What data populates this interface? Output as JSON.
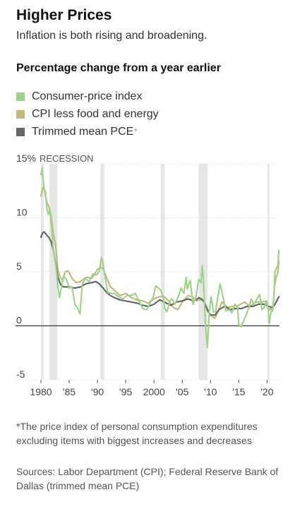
{
  "header": {
    "title": "Higher Prices",
    "subtitle": "Inflation is both rising and broadening.",
    "section_heading": "Percentage change from a year earlier"
  },
  "legend": [
    {
      "label": "Consumer-price index",
      "color": "#9fd38a",
      "marker": ""
    },
    {
      "label": "CPI less food and energy",
      "color": "#c3b97a",
      "marker": ""
    },
    {
      "label": "Trimmed mean PCE",
      "color": "#666666",
      "marker": "*"
    }
  ],
  "footnote": {
    "marker": "*",
    "text": "The price index of personal consumption expenditures excluding items with biggest increases and decreases"
  },
  "sources": "Sources: Labor Department (CPI); Federal Reserve Bank of Dallas (trimmed mean PCE)",
  "chart_data": {
    "type": "line",
    "title": "Percentage change from a year earlier",
    "xlabel": "",
    "ylabel": "",
    "xlim": [
      1979.5,
      2022.2
    ],
    "ylim": [
      -5,
      15
    ],
    "y_ticks": [
      {
        "value": 15,
        "label": "15%"
      },
      {
        "value": 10,
        "label": "10"
      },
      {
        "value": 5,
        "label": "5"
      },
      {
        "value": 0,
        "label": "0"
      },
      {
        "value": -5,
        "label": "-5"
      }
    ],
    "x_ticks": [
      {
        "value": 1980,
        "label": "1980"
      },
      {
        "value": 1985,
        "label": "'85"
      },
      {
        "value": 1990,
        "label": "'90"
      },
      {
        "value": 1995,
        "label": "'95"
      },
      {
        "value": 2000,
        "label": "2000"
      },
      {
        "value": 2005,
        "label": "'05"
      },
      {
        "value": 2010,
        "label": "'10"
      },
      {
        "value": 2015,
        "label": "'15"
      },
      {
        "value": 2020,
        "label": "'20"
      }
    ],
    "grid": true,
    "recession_label": "RECESSION",
    "recessions": [
      [
        1980.0,
        1980.5
      ],
      [
        1981.5,
        1982.9
      ],
      [
        1990.5,
        1991.2
      ],
      [
        2001.2,
        2001.9
      ],
      [
        2007.9,
        2009.5
      ],
      [
        2020.1,
        2020.4
      ]
    ],
    "series": [
      {
        "name": "Consumer-price index",
        "color": "#9fd38a",
        "x": [
          1980.0,
          1980.2,
          1980.4,
          1980.6,
          1980.8,
          1981.0,
          1981.3,
          1981.6,
          1981.9,
          1982.2,
          1982.5,
          1982.8,
          1983.0,
          1983.3,
          1983.6,
          1984.0,
          1984.5,
          1985.0,
          1985.5,
          1986.0,
          1986.5,
          1986.9,
          1987.3,
          1987.8,
          1988.5,
          1989.2,
          1989.8,
          1990.3,
          1990.7,
          1990.9,
          1991.3,
          1991.8,
          1992.5,
          1993.0,
          1993.7,
          1994.5,
          1995.2,
          1996.0,
          1996.7,
          1997.3,
          1998.0,
          1998.7,
          1999.3,
          1999.9,
          2000.3,
          2000.8,
          2001.2,
          2001.7,
          2001.9,
          2002.3,
          2002.8,
          2003.2,
          2003.7,
          2004.3,
          2004.8,
          2005.3,
          2005.7,
          2005.9,
          2006.4,
          2006.9,
          2007.4,
          2007.9,
          2008.3,
          2008.55,
          2008.8,
          2009.1,
          2009.45,
          2009.8,
          2010.1,
          2010.5,
          2010.9,
          2011.3,
          2011.7,
          2012.2,
          2012.7,
          2013.3,
          2013.8,
          2014.3,
          2014.8,
          2015.0,
          2015.4,
          2015.9,
          2016.3,
          2016.8,
          2017.2,
          2017.7,
          2018.2,
          2018.7,
          2019.1,
          2019.6,
          2019.9,
          2020.2,
          2020.4,
          2020.7,
          2021.0,
          2021.2,
          2021.4,
          2021.7,
          2021.9,
          2022.1
        ],
        "values": [
          14.0,
          14.6,
          13.5,
          12.6,
          12.4,
          11.0,
          10.3,
          10.8,
          9.0,
          7.0,
          6.0,
          4.8,
          3.6,
          2.6,
          3.5,
          4.6,
          4.3,
          3.5,
          3.6,
          2.0,
          1.6,
          1.1,
          3.8,
          4.4,
          4.1,
          4.8,
          4.7,
          5.0,
          6.3,
          6.0,
          4.7,
          3.1,
          3.0,
          3.0,
          2.7,
          2.5,
          2.8,
          2.8,
          3.0,
          2.3,
          1.6,
          1.5,
          2.1,
          2.7,
          3.7,
          3.5,
          3.3,
          2.6,
          1.6,
          1.3,
          2.3,
          2.5,
          2.0,
          2.7,
          3.5,
          3.0,
          4.5,
          3.4,
          4.2,
          2.0,
          2.6,
          4.3,
          4.0,
          5.6,
          3.7,
          0.0,
          -2.0,
          1.4,
          2.7,
          1.3,
          1.3,
          2.7,
          3.9,
          2.7,
          1.4,
          1.5,
          1.2,
          2.0,
          1.7,
          0.1,
          -0.1,
          0.5,
          1.0,
          1.7,
          2.5,
          2.0,
          2.5,
          2.9,
          1.5,
          1.8,
          2.3,
          1.5,
          0.2,
          1.3,
          1.4,
          2.6,
          5.0,
          5.4,
          5.5,
          7.0
        ]
      },
      {
        "name": "CPI less food and energy",
        "color": "#c3b97a",
        "x": [
          1980.0,
          1980.3,
          1980.6,
          1981.0,
          1981.4,
          1981.8,
          1982.2,
          1982.6,
          1983.0,
          1983.4,
          1983.8,
          1984.3,
          1984.8,
          1985.5,
          1986.2,
          1987.0,
          1988.0,
          1989.0,
          1990.0,
          1990.6,
          1991.0,
          1991.6,
          1992.3,
          1993.0,
          1994.0,
          1995.0,
          1996.0,
          1997.0,
          1998.0,
          1999.0,
          2000.0,
          2001.0,
          2001.8,
          2002.6,
          2003.4,
          2004.2,
          2005.0,
          2006.0,
          2006.8,
          2007.6,
          2008.5,
          2009.3,
          2010.0,
          2010.8,
          2011.5,
          2012.0,
          2013.0,
          2014.0,
          2015.0,
          2016.0,
          2017.0,
          2018.0,
          2019.0,
          2019.9,
          2020.3,
          2020.6,
          2021.0,
          2021.3,
          2021.6,
          2021.9,
          2022.1
        ],
        "values": [
          12.0,
          12.8,
          12.6,
          11.5,
          11.0,
          10.2,
          8.5,
          7.5,
          5.2,
          4.5,
          4.2,
          5.0,
          5.1,
          4.4,
          4.0,
          4.1,
          4.5,
          4.4,
          5.2,
          5.4,
          5.3,
          4.5,
          3.6,
          3.3,
          2.8,
          3.0,
          2.6,
          2.4,
          2.3,
          2.1,
          2.5,
          2.7,
          2.7,
          2.3,
          1.7,
          1.5,
          2.2,
          2.8,
          2.7,
          2.3,
          2.5,
          1.7,
          1.0,
          0.7,
          1.5,
          2.2,
          1.7,
          1.8,
          1.9,
          2.2,
          1.8,
          2.2,
          2.2,
          2.3,
          1.4,
          1.6,
          1.4,
          3.5,
          4.5,
          4.9,
          6.0
        ]
      },
      {
        "name": "Trimmed mean PCE",
        "color": "#666666",
        "x": [
          1980.0,
          1980.3,
          1980.6,
          1981.0,
          1981.4,
          1981.8,
          1982.2,
          1982.6,
          1983.0,
          1983.5,
          1984.0,
          1985.0,
          1986.0,
          1987.0,
          1988.0,
          1989.0,
          1989.7,
          1990.3,
          1991.0,
          1991.6,
          1992.3,
          1993.0,
          1994.0,
          1995.0,
          1996.0,
          1997.0,
          1998.0,
          1999.0,
          2000.0,
          2001.0,
          2001.8,
          2003.0,
          2004.0,
          2005.0,
          2006.0,
          2007.0,
          2008.0,
          2008.8,
          2009.5,
          2010.0,
          2010.8,
          2011.5,
          2012.5,
          2013.5,
          2014.5,
          2015.5,
          2016.5,
          2017.5,
          2018.5,
          2019.5,
          2020.3,
          2020.8,
          2021.3,
          2021.7,
          2022.1
        ],
        "values": [
          8.2,
          8.6,
          8.7,
          8.4,
          8.2,
          7.8,
          7.0,
          5.8,
          4.5,
          3.8,
          3.6,
          3.6,
          3.5,
          3.6,
          3.9,
          4.0,
          4.1,
          3.9,
          3.5,
          3.1,
          2.8,
          2.6,
          2.4,
          2.3,
          2.2,
          2.1,
          1.9,
          1.8,
          2.0,
          2.4,
          2.2,
          1.9,
          2.2,
          2.3,
          2.5,
          2.3,
          2.6,
          2.3,
          1.4,
          1.0,
          1.0,
          1.5,
          1.8,
          1.5,
          1.6,
          1.6,
          1.8,
          1.8,
          2.0,
          2.0,
          1.8,
          1.7,
          1.9,
          2.3,
          2.7
        ]
      }
    ]
  }
}
